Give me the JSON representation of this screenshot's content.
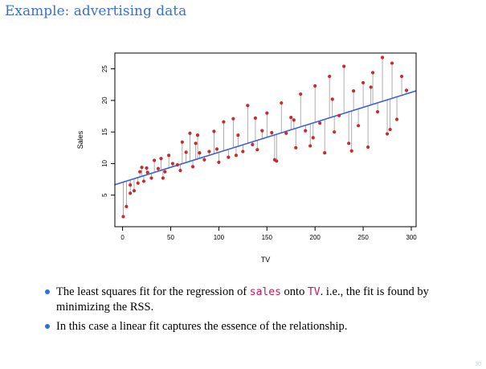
{
  "slide": {
    "title": "Example: advertising data",
    "page_number": "30"
  },
  "bullets": [
    {
      "parts": [
        "The least squares fit for the regression of ",
        "sales",
        " onto ",
        "TV",
        ". i.e., the fit is found by minimizing the RSS."
      ]
    },
    {
      "parts": [
        "In this case a linear fit captures the essence of the relationship."
      ]
    }
  ],
  "chart_data": {
    "type": "scatter",
    "xlabel": "TV",
    "ylabel": "Sales",
    "xlim": [
      -8,
      305
    ],
    "ylim": [
      0,
      27.5
    ],
    "xticks": [
      0,
      50,
      100,
      150,
      200,
      250,
      300
    ],
    "yticks": [
      5,
      10,
      15,
      20,
      25
    ],
    "point_color": "#cc2a2a",
    "fit_color": "#3b5ee6",
    "residual_color": "#999999",
    "fit": {
      "intercept": 7.03,
      "slope": 0.0475
    },
    "x": [
      0.7,
      4,
      8,
      12,
      16,
      18,
      20,
      22,
      26,
      30,
      33,
      37,
      40,
      44,
      48,
      52,
      57,
      62,
      66,
      70,
      73,
      76,
      80,
      85,
      90,
      95,
      100,
      105,
      110,
      115,
      120,
      125,
      130,
      135,
      140,
      145,
      150,
      155,
      160,
      165,
      170,
      175,
      180,
      185,
      190,
      195,
      200,
      205,
      210,
      215,
      220,
      225,
      230,
      235,
      240,
      245,
      250,
      255,
      260,
      265,
      270,
      275,
      280,
      285,
      290,
      295,
      8,
      25,
      42,
      60,
      78,
      98,
      118,
      138,
      158,
      178,
      198,
      218,
      238,
      258,
      278
    ],
    "y": [
      1.6,
      3.2,
      5.3,
      5.7,
      6.9,
      8.7,
      9.4,
      7.2,
      8.6,
      7.7,
      10.5,
      9.2,
      10.8,
      8.7,
      11.3,
      10.0,
      9.8,
      13.4,
      11.8,
      14.8,
      9.5,
      13.2,
      11.7,
      10.6,
      11.9,
      15.1,
      10.2,
      16.6,
      11.0,
      17.1,
      14.5,
      11.9,
      19.2,
      13.0,
      12.2,
      15.2,
      18.0,
      14.9,
      10.4,
      19.6,
      14.8,
      17.3,
      12.5,
      21.0,
      15.2,
      12.8,
      22.3,
      16.4,
      11.7,
      23.8,
      15.0,
      17.6,
      25.4,
      13.2,
      21.5,
      16.0,
      22.8,
      12.6,
      24.4,
      18.2,
      26.8,
      14.7,
      25.9,
      17.0,
      23.8,
      21.6,
      6.6,
      9.3,
      7.7,
      8.9,
      14.5,
      12.3,
      11.3,
      17.2,
      10.6,
      16.9,
      14.1,
      20.2,
      12.0,
      22.1,
      15.4
    ]
  }
}
